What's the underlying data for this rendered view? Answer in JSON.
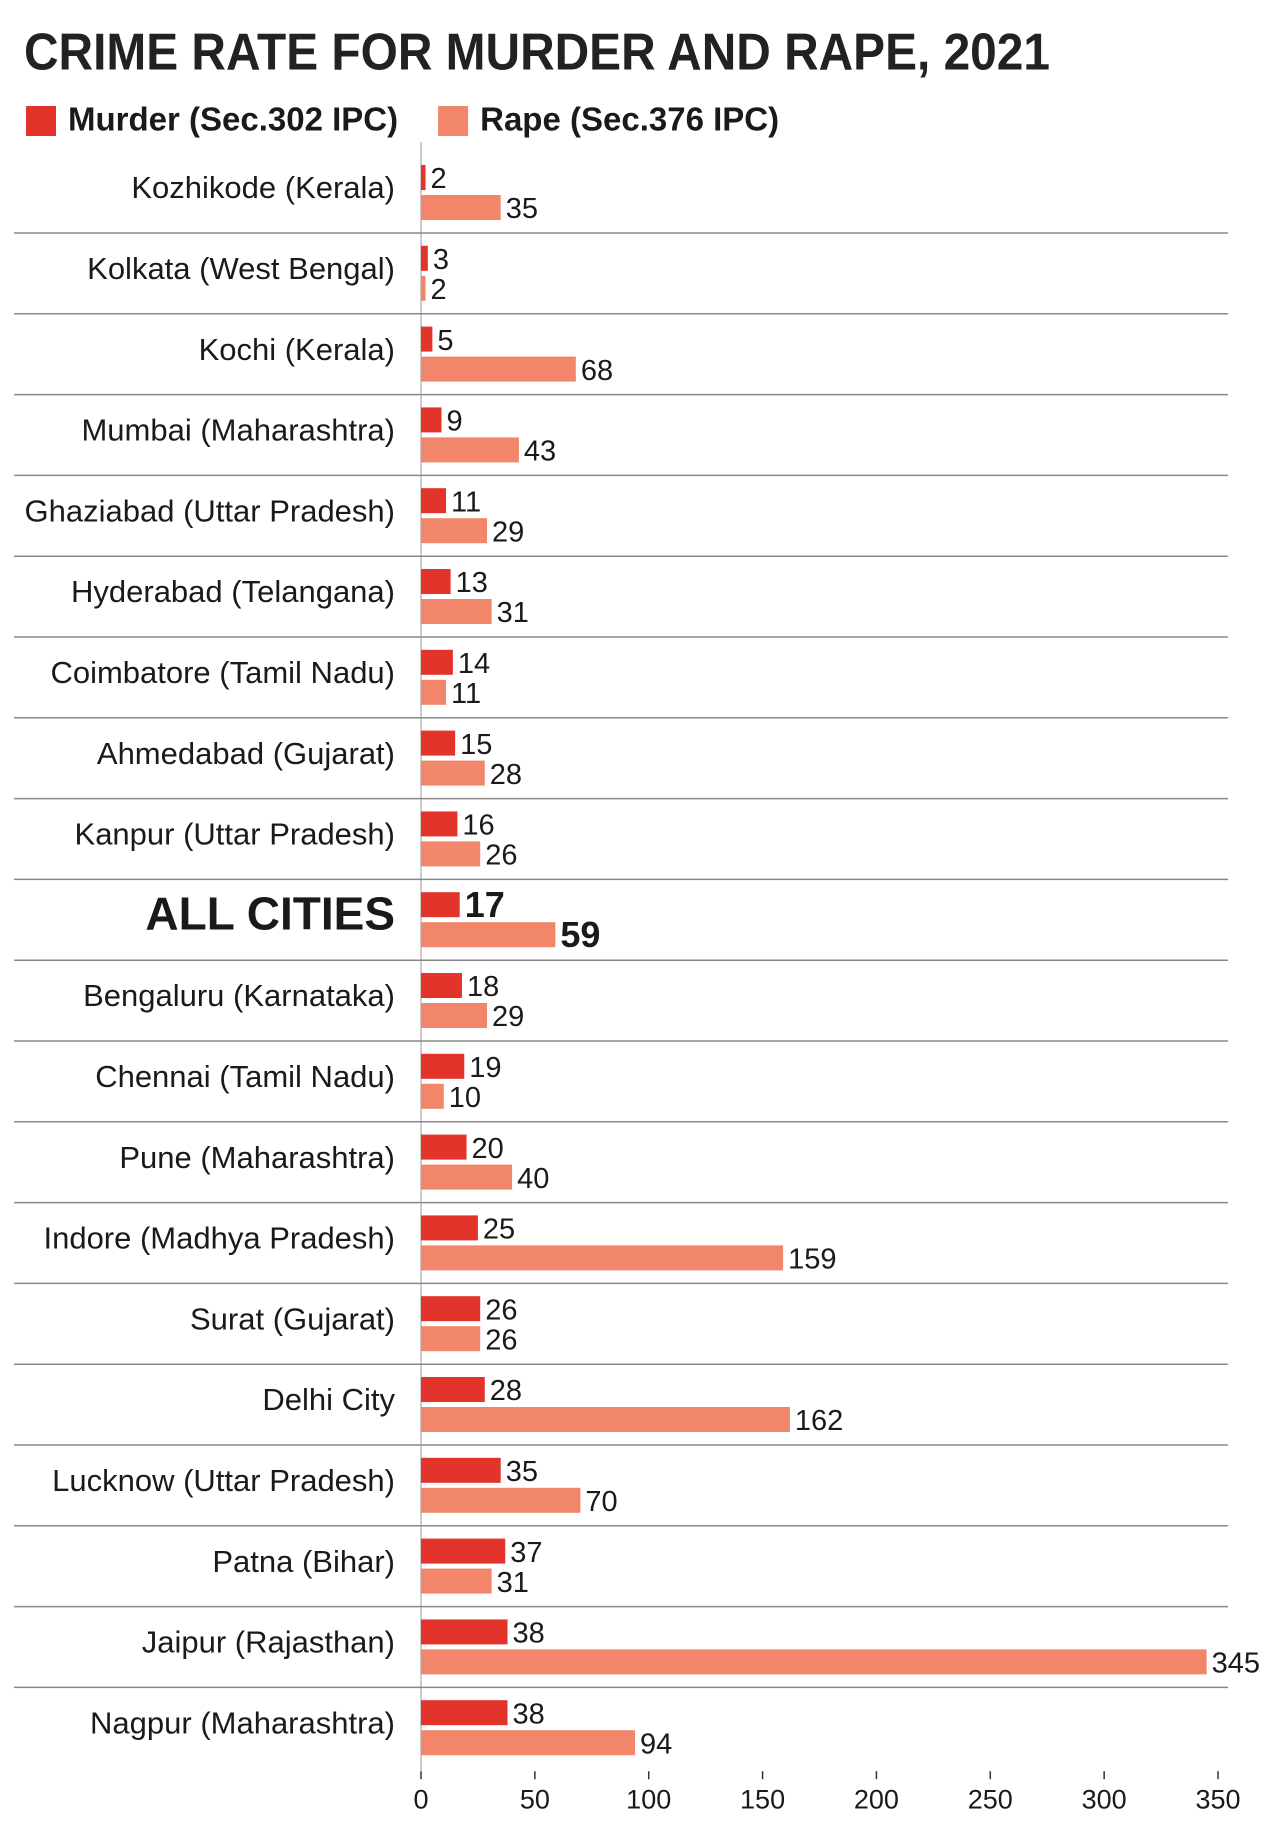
{
  "chart_data": {
    "type": "bar",
    "orientation": "horizontal",
    "title": "CRIME RATE FOR MURDER AND RAPE, 2021",
    "categories": [
      "Kozhikode (Kerala)",
      "Kolkata (West Bengal)",
      "Kochi (Kerala)",
      "Mumbai (Maharashtra)",
      "Ghaziabad (Uttar Pradesh)",
      "Hyderabad (Telangana)",
      "Coimbatore (Tamil Nadu)",
      "Ahmedabad (Gujarat)",
      "Kanpur (Uttar Pradesh)",
      "ALL CITIES",
      "Bengaluru (Karnataka)",
      "Chennai (Tamil Nadu)",
      "Pune (Maharashtra)",
      "Indore (Madhya Pradesh)",
      "Surat (Gujarat)",
      "Delhi City",
      "Lucknow (Uttar Pradesh)",
      "Patna (Bihar)",
      "Jaipur (Rajasthan)",
      "Nagpur (Maharashtra)"
    ],
    "series": [
      {
        "name": "Murder (Sec.302 IPC)",
        "color": "#e2342b",
        "values": [
          2,
          3,
          5,
          9,
          11,
          13,
          14,
          15,
          16,
          17,
          18,
          19,
          20,
          25,
          26,
          28,
          35,
          37,
          38,
          38
        ]
      },
      {
        "name": "Rape (Sec.376 IPC)",
        "color": "#f1866b",
        "values": [
          35,
          2,
          68,
          43,
          29,
          31,
          11,
          28,
          26,
          59,
          29,
          10,
          40,
          159,
          26,
          162,
          70,
          31,
          345,
          94
        ]
      }
    ],
    "xlim": [
      0,
      350
    ],
    "xticks": [
      0,
      50,
      100,
      150,
      200,
      250,
      300,
      350
    ],
    "legend": "top-left"
  }
}
